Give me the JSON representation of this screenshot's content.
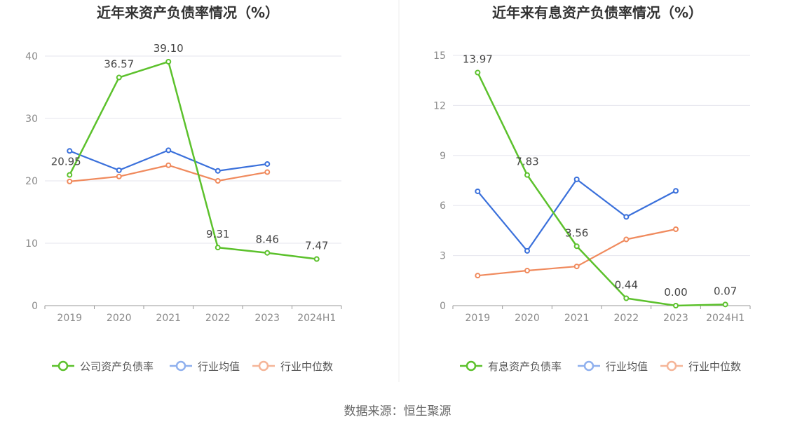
{
  "source": "数据来源：恒生聚源",
  "colors": {
    "company": "#5cc12c",
    "avg": "#3a70db",
    "median": "#f08a5d",
    "grid": "#e6e6ee",
    "axis": "#999999"
  },
  "chart_data": [
    {
      "type": "line",
      "title": "近年来资产负债率情况（%）",
      "categories": [
        "2019",
        "2020",
        "2021",
        "2022",
        "2023",
        "2024H1"
      ],
      "ylim": [
        0,
        40
      ],
      "yticks": [
        0,
        10,
        20,
        30,
        40
      ],
      "series": [
        {
          "name": "公司资产负债率",
          "key": "company",
          "values": [
            20.95,
            36.57,
            39.1,
            9.31,
            8.46,
            7.47
          ],
          "labels": [
            "20.95",
            "36.57",
            "39.10",
            "9.31",
            "8.46",
            "7.47"
          ]
        },
        {
          "name": "行业均值",
          "key": "avg",
          "values": [
            24.8,
            21.7,
            24.9,
            21.6,
            22.7,
            null
          ]
        },
        {
          "name": "行业中位数",
          "key": "median",
          "values": [
            19.9,
            20.7,
            22.5,
            20.0,
            21.4,
            null
          ]
        }
      ]
    },
    {
      "type": "line",
      "title": "近年来有息资产负债率情况（%）",
      "categories": [
        "2019",
        "2020",
        "2021",
        "2022",
        "2023",
        "2024H1"
      ],
      "ylim": [
        0,
        15
      ],
      "yticks": [
        0,
        3,
        6,
        9,
        12,
        15
      ],
      "series": [
        {
          "name": "有息资产负债率",
          "key": "company",
          "values": [
            13.97,
            7.83,
            3.56,
            0.44,
            0.0,
            0.07
          ],
          "labels": [
            "13.97",
            "7.83",
            "3.56",
            "0.44",
            "0.00",
            "0.07"
          ]
        },
        {
          "name": "行业均值",
          "key": "avg",
          "values": [
            6.85,
            3.28,
            7.57,
            5.32,
            6.88,
            null
          ]
        },
        {
          "name": "行业中位数",
          "key": "median",
          "values": [
            1.8,
            2.1,
            2.35,
            3.97,
            4.58,
            null
          ]
        }
      ]
    }
  ]
}
